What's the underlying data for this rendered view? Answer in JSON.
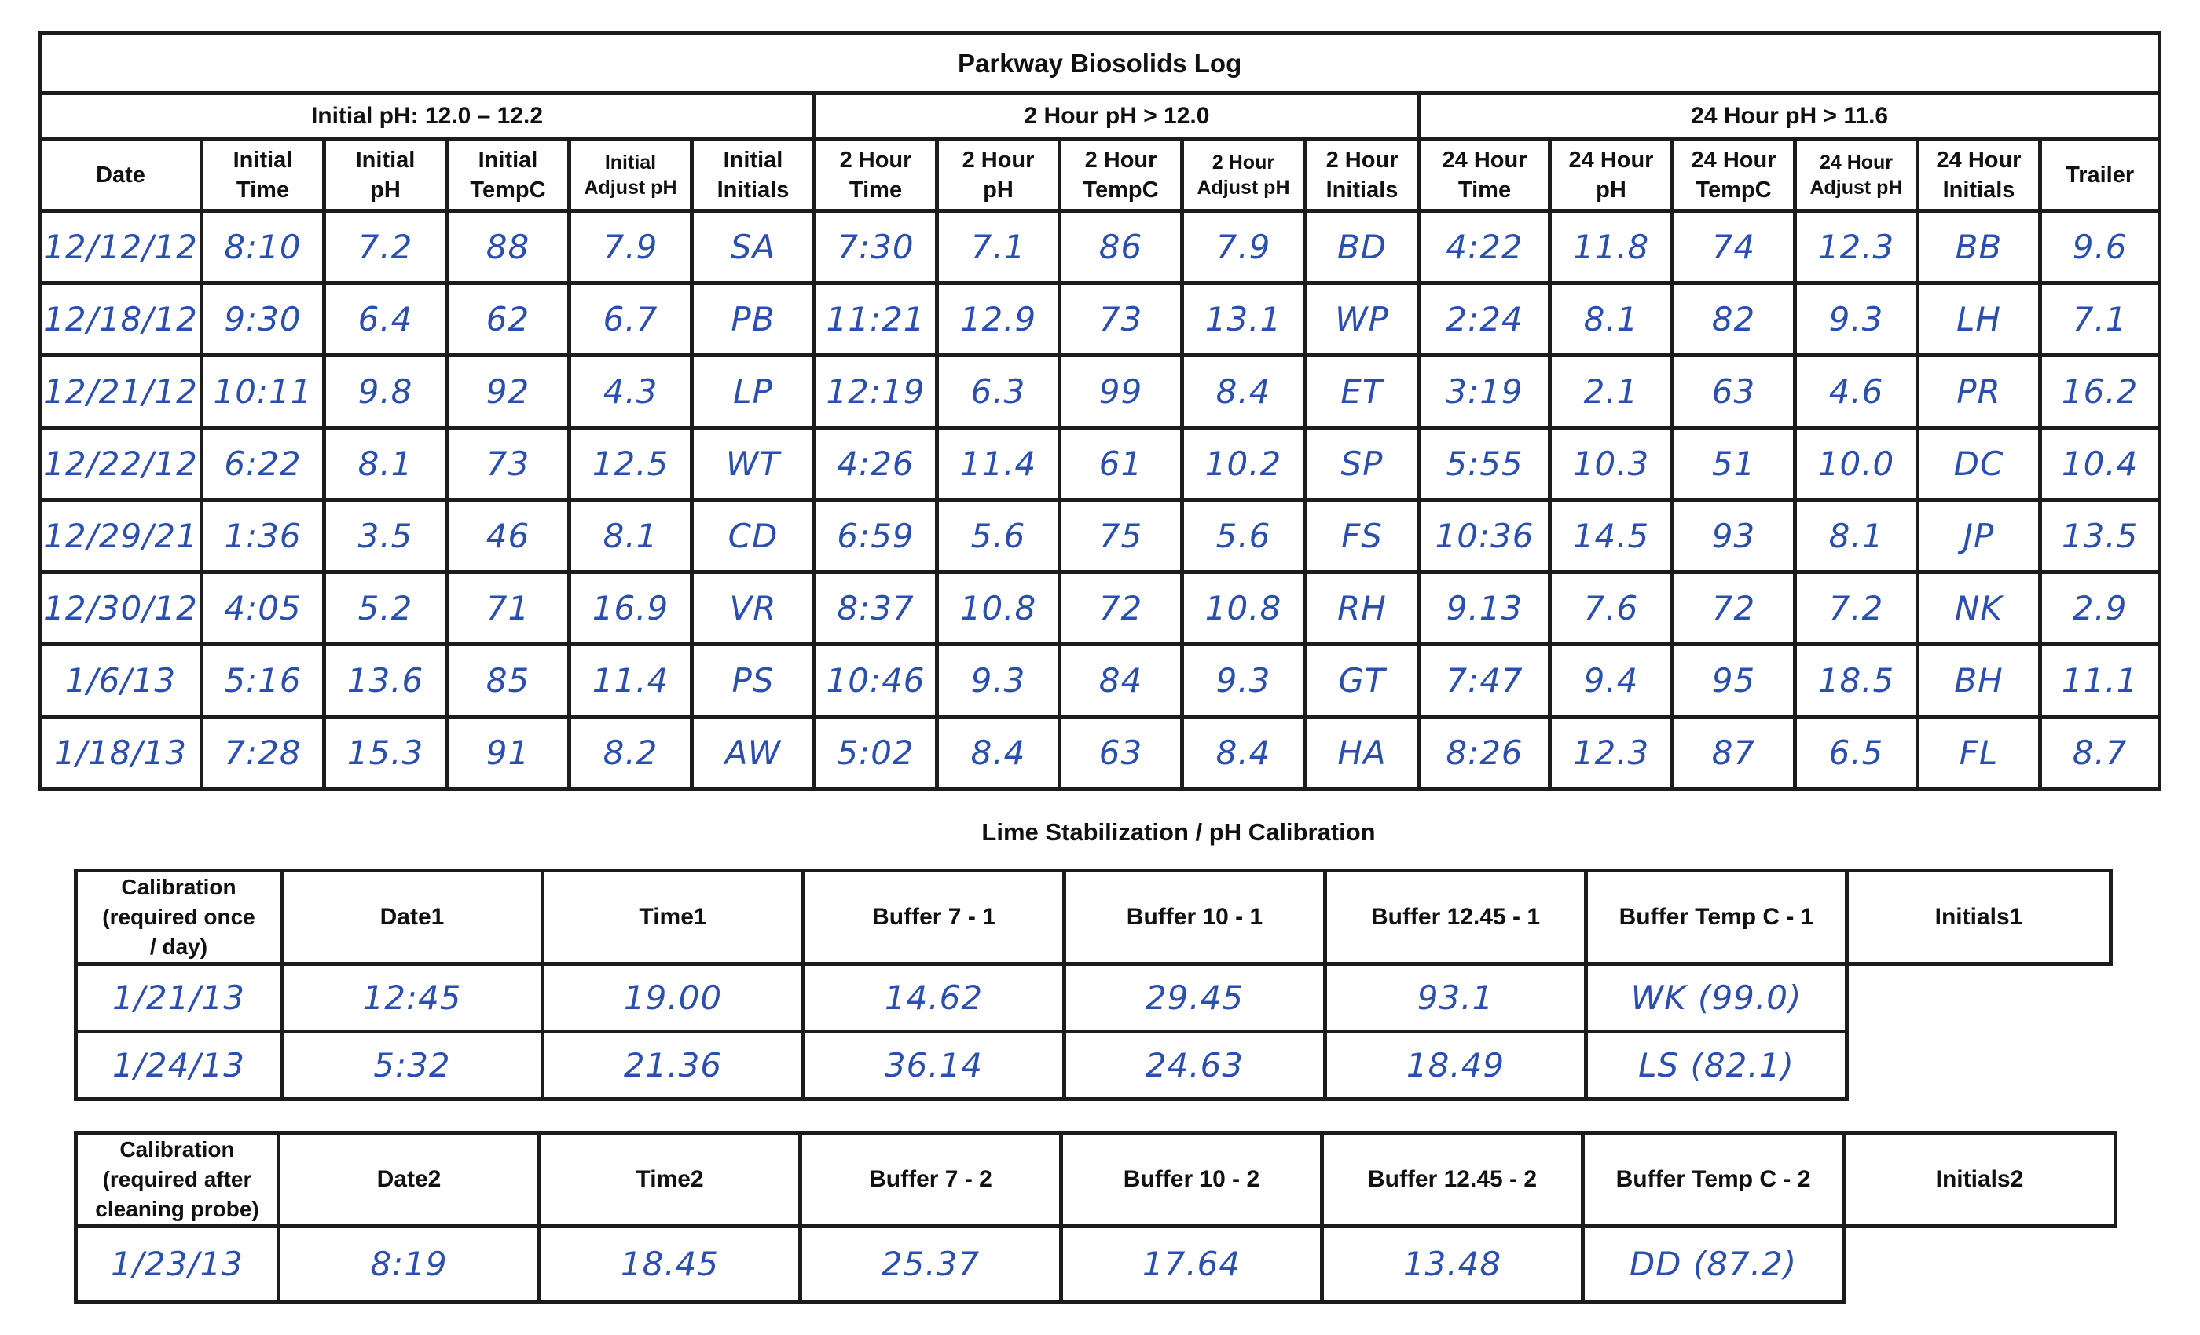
{
  "log": {
    "title": "Parkway Biosolids Log",
    "groups": [
      "Initial pH: 12.0 – 12.2",
      "2 Hour pH > 12.0",
      "24 Hour pH > 11.6"
    ],
    "columns": [
      [
        "Date"
      ],
      [
        "Initial",
        "Time"
      ],
      [
        "Initial",
        "pH"
      ],
      [
        "Initial",
        "TempC"
      ],
      [
        "Initial",
        "Adjust pH"
      ],
      [
        "Initial",
        "Initials"
      ],
      [
        "2 Hour",
        "Time"
      ],
      [
        "2 Hour",
        "pH"
      ],
      [
        "2 Hour",
        "TempC"
      ],
      [
        "2 Hour",
        "Adjust pH"
      ],
      [
        "2 Hour",
        "Initials"
      ],
      [
        "24 Hour",
        "Time"
      ],
      [
        "24 Hour",
        "pH"
      ],
      [
        "24 Hour",
        "TempC"
      ],
      [
        "24 Hour",
        "Adjust pH"
      ],
      [
        "24 Hour",
        "Initials"
      ],
      [
        "Trailer"
      ]
    ],
    "rows": [
      [
        "12/12/12",
        "8:10",
        "7.2",
        "88",
        "7.9",
        "SA",
        "7:30",
        "7.1",
        "86",
        "7.9",
        "BD",
        "4:22",
        "11.8",
        "74",
        "12.3",
        "BB",
        "9.6"
      ],
      [
        "12/18/12",
        "9:30",
        "6.4",
        "62",
        "6.7",
        "PB",
        "11:21",
        "12.9",
        "73",
        "13.1",
        "WP",
        "2:24",
        "8.1",
        "82",
        "9.3",
        "LH",
        "7.1"
      ],
      [
        "12/21/12",
        "10:11",
        "9.8",
        "92",
        "4.3",
        "LP",
        "12:19",
        "6.3",
        "99",
        "8.4",
        "ET",
        "3:19",
        "2.1",
        "63",
        "4.6",
        "PR",
        "16.2"
      ],
      [
        "12/22/12",
        "6:22",
        "8.1",
        "73",
        "12.5",
        "WT",
        "4:26",
        "11.4",
        "61",
        "10.2",
        "SP",
        "5:55",
        "10.3",
        "51",
        "10.0",
        "DC",
        "10.4"
      ],
      [
        "12/29/21",
        "1:36",
        "3.5",
        "46",
        "8.1",
        "CD",
        "6:59",
        "5.6",
        "75",
        "5.6",
        "FS",
        "10:36",
        "14.5",
        "93",
        "8.1",
        "JP",
        "13.5"
      ],
      [
        "12/30/12",
        "4:05",
        "5.2",
        "71",
        "16.9",
        "VR",
        "8:37",
        "10.8",
        "72",
        "10.8",
        "RH",
        "9.13",
        "7.6",
        "72",
        "7.2",
        "NK",
        "2.9"
      ],
      [
        "1/6/13",
        "5:16",
        "13.6",
        "85",
        "11.4",
        "PS",
        "10:46",
        "9.3",
        "84",
        "9.3",
        "GT",
        "7:47",
        "9.4",
        "95",
        "18.5",
        "BH",
        "11.1"
      ],
      [
        "1/18/13",
        "7:28",
        "15.3",
        "91",
        "8.2",
        "AW",
        "5:02",
        "8.4",
        "63",
        "8.4",
        "HA",
        "8:26",
        "12.3",
        "87",
        "6.5",
        "FL",
        "8.7"
      ]
    ]
  },
  "calibration": {
    "title": "Lime Stabilization / pH Calibration",
    "table1": {
      "label": [
        "Calibration",
        "(required once",
        "/ day)"
      ],
      "headers": [
        "Date1",
        "Time1",
        "Buffer 7 - 1",
        "Buffer 10 - 1",
        "Buffer 12.45 - 1",
        "Buffer Temp C - 1",
        "Initials1"
      ],
      "rows": [
        [
          "1/21/13",
          "12:45",
          "19.00",
          "14.62",
          "29.45",
          "93.1",
          "WK (99.0)"
        ],
        [
          "1/24/13",
          "5:32",
          "21.36",
          "36.14",
          "24.63",
          "18.49",
          "LS (82.1)"
        ]
      ]
    },
    "table2": {
      "label": [
        "Calibration",
        "(required after",
        "cleaning probe)"
      ],
      "headers": [
        "Date2",
        "Time2",
        "Buffer 7 - 2",
        "Buffer 10 - 2",
        "Buffer 12.45 - 2",
        "Buffer Temp C - 2",
        "Initials2"
      ],
      "rows": [
        [
          "1/23/13",
          "8:19",
          "18.45",
          "25.37",
          "17.64",
          "13.48",
          "DD (87.2)"
        ]
      ]
    }
  }
}
